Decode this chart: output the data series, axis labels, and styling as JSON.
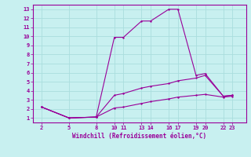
{
  "xlabel": "Windchill (Refroidissement éolien,°C)",
  "bg_color": "#c8f0f0",
  "grid_color": "#aadddd",
  "line_color": "#990099",
  "x_ticks": [
    2,
    5,
    8,
    10,
    11,
    13,
    14,
    16,
    17,
    19,
    20,
    22,
    23
  ],
  "y_ticks": [
    1,
    2,
    3,
    4,
    5,
    6,
    7,
    8,
    9,
    10,
    11,
    12,
    13
  ],
  "ylim": [
    0.5,
    13.5
  ],
  "xlim": [
    1.0,
    24.5
  ],
  "series1_x": [
    2,
    5,
    8,
    10,
    11,
    13,
    14,
    16,
    17,
    19,
    20,
    22,
    23
  ],
  "series1_y": [
    2.2,
    1.0,
    1.1,
    9.9,
    9.9,
    11.7,
    11.7,
    13.0,
    13.0,
    5.7,
    5.9,
    3.4,
    3.5
  ],
  "series2_x": [
    2,
    5,
    8,
    10,
    11,
    13,
    14,
    16,
    17,
    19,
    20,
    22,
    23
  ],
  "series2_y": [
    2.2,
    1.0,
    1.1,
    3.5,
    3.7,
    4.3,
    4.5,
    4.8,
    5.1,
    5.4,
    5.7,
    3.4,
    3.5
  ],
  "series3_x": [
    2,
    5,
    8,
    10,
    11,
    13,
    14,
    16,
    17,
    19,
    20,
    22,
    23
  ],
  "series3_y": [
    2.2,
    1.0,
    1.1,
    2.1,
    2.2,
    2.6,
    2.8,
    3.1,
    3.3,
    3.5,
    3.6,
    3.3,
    3.4
  ]
}
